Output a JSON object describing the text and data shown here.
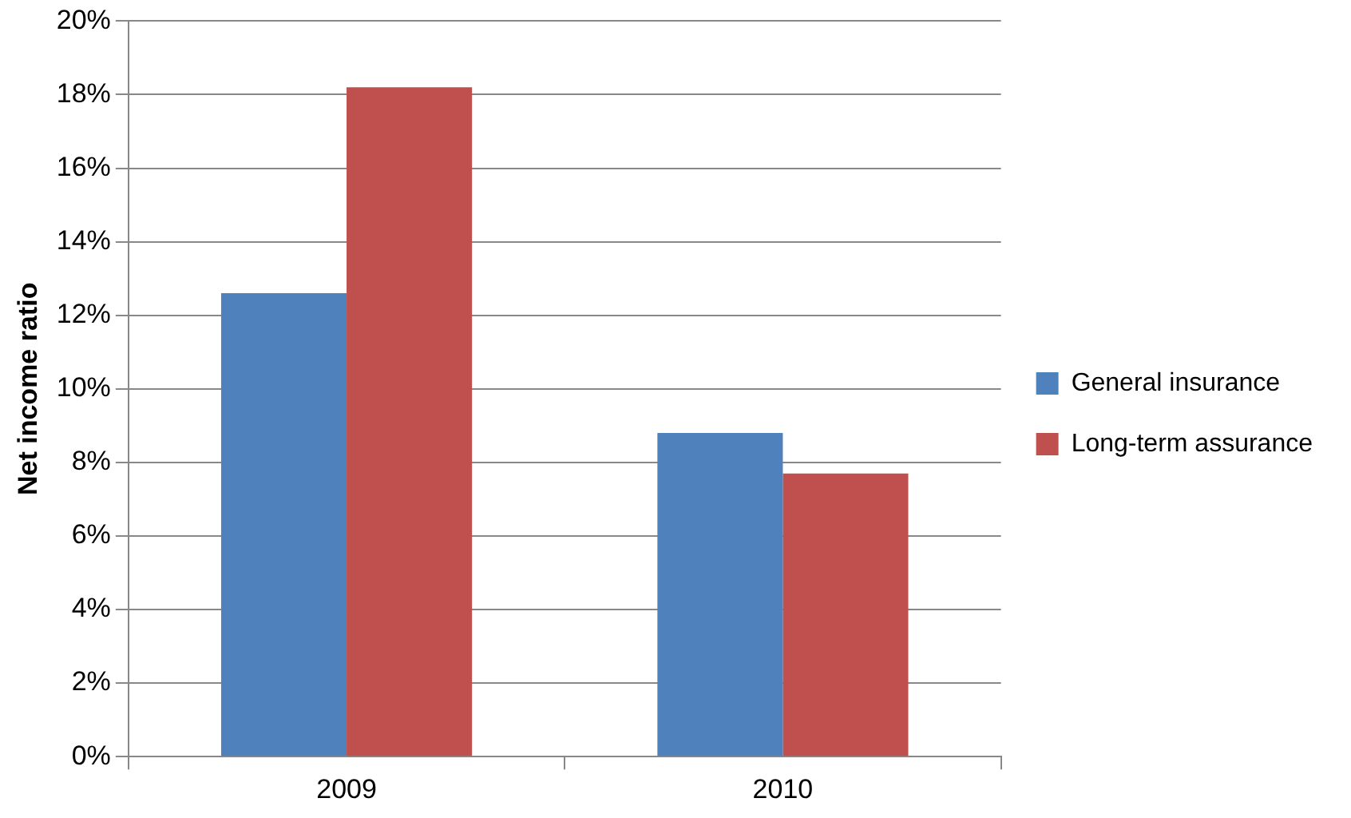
{
  "chart_data": {
    "type": "bar",
    "ylabel": "Net income ratio",
    "categories": [
      "2009",
      "2010"
    ],
    "series": [
      {
        "name": "General insurance",
        "color": "#4f81bd",
        "values": [
          12.6,
          8.8
        ]
      },
      {
        "name": "Long-term assurance",
        "color": "#c0504d",
        "values": [
          18.2,
          7.7
        ]
      }
    ],
    "ylim": [
      0,
      20
    ],
    "yticks": [
      {
        "value": 0,
        "label": "0%"
      },
      {
        "value": 2,
        "label": "2%"
      },
      {
        "value": 4,
        "label": "4%"
      },
      {
        "value": 6,
        "label": "6%"
      },
      {
        "value": 8,
        "label": "8%"
      },
      {
        "value": 10,
        "label": "10%"
      },
      {
        "value": 12,
        "label": "12%"
      },
      {
        "value": 14,
        "label": "14%"
      },
      {
        "value": 16,
        "label": "16%"
      },
      {
        "value": 18,
        "label": "18%"
      },
      {
        "value": 20,
        "label": "20%"
      }
    ],
    "grid": "y",
    "legend": "right"
  }
}
